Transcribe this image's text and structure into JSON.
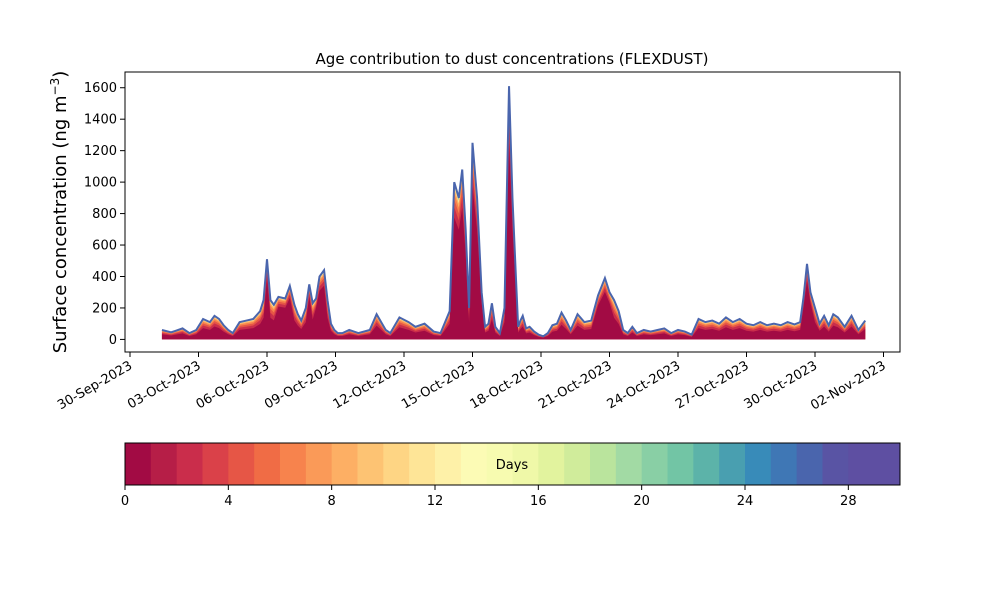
{
  "chart_data": {
    "type": "area",
    "title": "Age contribution to dust concentrations (FLEXDUST)",
    "ylabel_main": "Surface concentration (ng m",
    "ylabel_exp": "−3",
    "ylabel_close": ")",
    "ylim": [
      -80,
      1700
    ],
    "xlim": [
      "2023-09-30",
      "2023-11-02"
    ],
    "xticks": [
      "30-Sep-2023",
      "03-Oct-2023",
      "06-Oct-2023",
      "09-Oct-2023",
      "12-Oct-2023",
      "15-Oct-2023",
      "18-Oct-2023",
      "21-Oct-2023",
      "24-Oct-2023",
      "27-Oct-2023",
      "30-Oct-2023",
      "02-Nov-2023"
    ],
    "yticks": [
      0,
      200,
      400,
      600,
      800,
      1000,
      1200,
      1400,
      1600
    ],
    "series_stack": "cumulative by age (0 to 30 days)",
    "total_series": {
      "x_days_from_30sep": [
        1.4,
        1.8,
        2.0,
        2.3,
        2.6,
        2.9,
        3.2,
        3.5,
        3.7,
        3.9,
        4.1,
        4.3,
        4.5,
        4.8,
        5.1,
        5.4,
        5.7,
        5.85,
        6.0,
        6.15,
        6.3,
        6.5,
        6.8,
        7.0,
        7.2,
        7.35,
        7.5,
        7.7,
        7.85,
        8.0,
        8.15,
        8.3,
        8.5,
        8.65,
        8.8,
        8.95,
        9.1,
        9.3,
        9.6,
        10.0,
        10.5,
        10.8,
        11.0,
        11.2,
        11.4,
        11.8,
        12.2,
        12.5,
        12.9,
        13.3,
        13.6,
        14.0,
        14.2,
        14.4,
        14.55,
        14.7,
        14.85,
        15.0,
        15.2,
        15.4,
        15.55,
        15.7,
        15.85,
        16.0,
        16.2,
        16.4,
        16.6,
        16.75,
        16.9,
        17.0,
        17.1,
        17.2,
        17.35,
        17.5,
        17.7,
        17.9,
        18.1,
        18.3,
        18.5,
        18.7,
        18.9,
        19.1,
        19.3,
        19.6,
        19.9,
        20.2,
        20.5,
        20.8,
        21.0,
        21.2,
        21.4,
        21.6,
        21.8,
        22.0,
        22.2,
        22.5,
        22.8,
        23.1,
        23.4,
        23.7,
        24.0,
        24.3,
        24.6,
        24.9,
        25.2,
        25.5,
        25.8,
        26.1,
        26.4,
        26.7,
        27.0,
        27.3,
        27.6,
        27.9,
        28.2,
        28.5,
        28.8,
        29.1,
        29.35,
        29.5,
        29.65,
        29.8,
        30.0,
        30.2,
        30.4,
        30.6,
        30.8,
        31.0,
        31.3,
        31.6,
        31.9,
        32.2
      ],
      "y": [
        60,
        45,
        55,
        70,
        40,
        60,
        130,
        110,
        150,
        130,
        90,
        60,
        40,
        110,
        120,
        130,
        180,
        250,
        510,
        250,
        220,
        270,
        260,
        340,
        220,
        160,
        120,
        200,
        350,
        230,
        260,
        400,
        440,
        250,
        100,
        60,
        40,
        40,
        60,
        40,
        60,
        160,
        110,
        60,
        40,
        140,
        110,
        80,
        100,
        50,
        40,
        180,
        1000,
        900,
        1080,
        700,
        200,
        1250,
        900,
        300,
        80,
        100,
        230,
        80,
        40,
        200,
        1610,
        900,
        400,
        80,
        120,
        150,
        70,
        80,
        50,
        30,
        20,
        40,
        90,
        100,
        170,
        120,
        60,
        160,
        110,
        120,
        280,
        390,
        300,
        250,
        180,
        60,
        40,
        80,
        40,
        60,
        50,
        60,
        70,
        40,
        60,
        50,
        30,
        130,
        110,
        120,
        100,
        140,
        110,
        130,
        100,
        90,
        110,
        90,
        100,
        90,
        110,
        95,
        110,
        270,
        480,
        300,
        200,
        100,
        150,
        90,
        160,
        140,
        80,
        150,
        60,
        120
      ]
    },
    "colorbar": {
      "label": "Days",
      "range": [
        0,
        30
      ],
      "ticks": [
        0,
        4,
        8,
        12,
        16,
        20,
        24,
        28
      ],
      "colors": [
        "#a20b44",
        "#b61e47",
        "#ca2d4b",
        "#da4149",
        "#e65646",
        "#f06c45",
        "#f7834d",
        "#fa9a58",
        "#fdaf64",
        "#fdc373",
        "#fed584",
        "#fee597",
        "#fef1a8",
        "#fcfbb5",
        "#f7fbb0",
        "#eff8a8",
        "#e2f39e",
        "#d0ec9b",
        "#bae49d",
        "#a2daa4",
        "#89cfa5",
        "#72c5a5",
        "#5cb3a9",
        "#499fb0",
        "#388bb9",
        "#3f77b5",
        "#4a65ad",
        "#5954a4",
        "#5e4fa2",
        "#5e4fa2"
      ]
    }
  }
}
